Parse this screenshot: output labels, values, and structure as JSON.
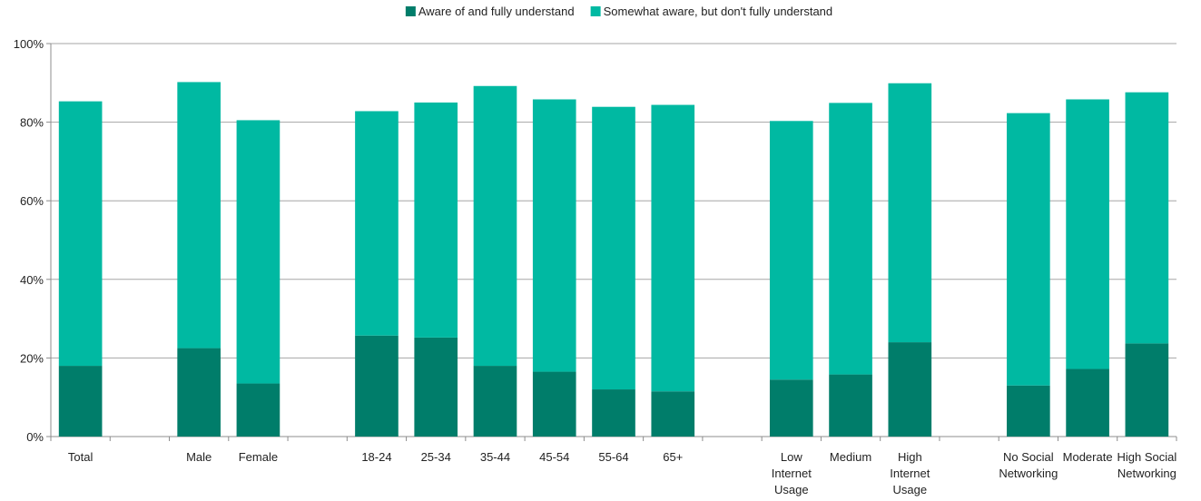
{
  "chart_data": {
    "type": "bar",
    "stacked": true,
    "title": "",
    "xlabel": "",
    "ylabel": "",
    "ylim": [
      0,
      100
    ],
    "yticks": [
      "0%",
      "20%",
      "40%",
      "60%",
      "80%",
      "100%"
    ],
    "grid": true,
    "legend_position": "top-center",
    "slots": [
      {
        "category": "Total",
        "lines": [
          "Total"
        ],
        "index": 0
      },
      null,
      {
        "category": "Male",
        "lines": [
          "Male"
        ],
        "index": 1
      },
      {
        "category": "Female",
        "lines": [
          "Female"
        ],
        "index": 2
      },
      null,
      {
        "category": "18-24",
        "lines": [
          "18-24"
        ],
        "index": 3
      },
      {
        "category": "25-34",
        "lines": [
          "25-34"
        ],
        "index": 4
      },
      {
        "category": "35-44",
        "lines": [
          "35-44"
        ],
        "index": 5
      },
      {
        "category": "45-54",
        "lines": [
          "45-54"
        ],
        "index": 6
      },
      {
        "category": "55-64",
        "lines": [
          "55-64"
        ],
        "index": 7
      },
      {
        "category": "65+",
        "lines": [
          "65+"
        ],
        "index": 8
      },
      null,
      {
        "category": "Low Internet Usage",
        "lines": [
          "Low",
          "Internet",
          "Usage"
        ],
        "index": 9
      },
      {
        "category": "Medium",
        "lines": [
          "Medium"
        ],
        "index": 10
      },
      {
        "category": "High Internet Usage",
        "lines": [
          "High",
          "Internet",
          "Usage"
        ],
        "index": 11
      },
      null,
      {
        "category": "No Social Networking",
        "lines": [
          "No Social",
          "Networking"
        ],
        "index": 12
      },
      {
        "category": "Moderate",
        "lines": [
          "Moderate"
        ],
        "index": 13
      },
      {
        "category": "High Social Networking",
        "lines": [
          "High Social",
          "Networking"
        ],
        "index": 14
      }
    ],
    "categories": [
      "Total",
      "Male",
      "Female",
      "18-24",
      "25-34",
      "35-44",
      "45-54",
      "55-64",
      "65+",
      "Low Internet Usage",
      "Medium",
      "High Internet Usage",
      "No Social Networking",
      "Moderate",
      "High Social Networking"
    ],
    "series": [
      {
        "name": "Aware of and fully understand",
        "color": "#007d6a",
        "values": [
          18,
          22.5,
          13.5,
          25.7,
          25.2,
          18,
          16.5,
          12,
          11.5,
          14.5,
          15.8,
          24,
          13,
          17.2,
          23.7
        ]
      },
      {
        "name": "Somewhat aware, but don't fully understand",
        "color": "#00b9a2",
        "values": [
          67.3,
          67.7,
          67,
          57.1,
          59.8,
          71.2,
          69.3,
          71.9,
          72.9,
          65.8,
          69.1,
          65.9,
          69.3,
          68.6,
          63.9
        ]
      }
    ]
  }
}
